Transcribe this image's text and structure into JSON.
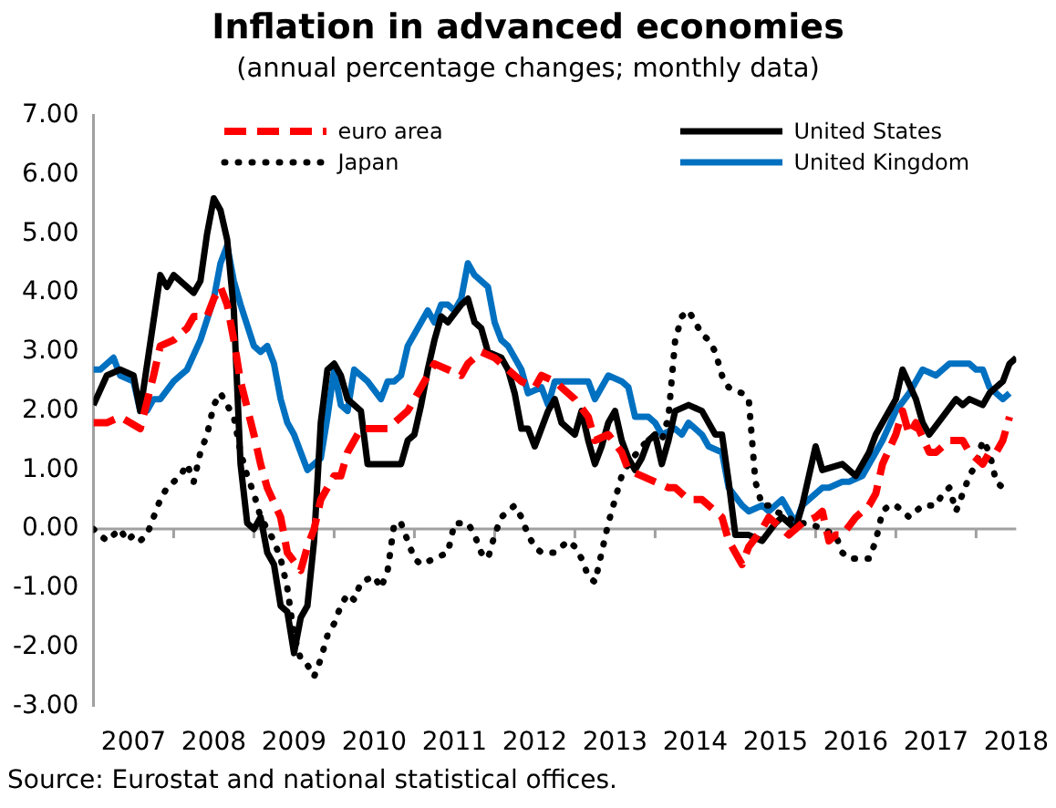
{
  "chart_data": {
    "type": "line",
    "title": "Inflation in advanced economies",
    "subtitle": "(annual percentage changes; monthly data)",
    "annotations": [
      "Source: Eurostat and national statistical offices."
    ],
    "xlim": [
      "2007-01",
      "2018-07"
    ],
    "xticks": [
      {
        "value": "2007-07",
        "label": "2007"
      },
      {
        "value": "2008-01",
        "label": null
      },
      {
        "value": "2008-07",
        "label": "2008"
      },
      {
        "value": "2009-01",
        "label": null
      },
      {
        "value": "2009-07",
        "label": "2009"
      },
      {
        "value": "2010-01",
        "label": null
      },
      {
        "value": "2010-07",
        "label": "2010"
      },
      {
        "value": "2011-01",
        "label": null
      },
      {
        "value": "2011-07",
        "label": "2011"
      },
      {
        "value": "2012-01",
        "label": null
      },
      {
        "value": "2012-07",
        "label": "2012"
      },
      {
        "value": "2013-01",
        "label": null
      },
      {
        "value": "2013-07",
        "label": "2013"
      },
      {
        "value": "2014-01",
        "label": null
      },
      {
        "value": "2014-07",
        "label": "2014"
      },
      {
        "value": "2015-01",
        "label": null
      },
      {
        "value": "2015-07",
        "label": "2015"
      },
      {
        "value": "2016-01",
        "label": null
      },
      {
        "value": "2016-07",
        "label": "2016"
      },
      {
        "value": "2017-01",
        "label": null
      },
      {
        "value": "2017-07",
        "label": "2017"
      },
      {
        "value": "2018-01",
        "label": null
      },
      {
        "value": "2018-07",
        "label": "2018"
      }
    ],
    "ylim": [
      -3,
      7
    ],
    "yticks": [
      {
        "value": -3,
        "label": "-3.00"
      },
      {
        "value": -2,
        "label": "-2.00"
      },
      {
        "value": -1,
        "label": "-1.00"
      },
      {
        "value": 0,
        "label": "0.00"
      },
      {
        "value": 1,
        "label": "1.00"
      },
      {
        "value": 2,
        "label": "2.00"
      },
      {
        "value": 3,
        "label": "3.00"
      },
      {
        "value": 4,
        "label": "4.00"
      },
      {
        "value": 5,
        "label": "5.00"
      },
      {
        "value": 6,
        "label": "6.00"
      },
      {
        "value": 7,
        "label": "7.00"
      }
    ],
    "legend": "top",
    "marker": "none",
    "series": [
      {
        "name": "euro area",
        "color": "#ff0000",
        "line_style": "dashed",
        "x": [
          "2007-01",
          "2007-03",
          "2007-05",
          "2007-08",
          "2007-10",
          "2007-11",
          "2008-01",
          "2008-03",
          "2008-04",
          "2008-06",
          "2008-07",
          "2008-08",
          "2008-09",
          "2008-10",
          "2008-11",
          "2009-01",
          "2009-02",
          "2009-03",
          "2009-05",
          "2009-06",
          "2009-08",
          "2009-09",
          "2009-10",
          "2009-11",
          "2010-01",
          "2010-02",
          "2010-03",
          "2010-05",
          "2010-07",
          "2010-09",
          "2010-11",
          "2010-12",
          "2011-02",
          "2011-04",
          "2011-06",
          "2011-08",
          "2011-09",
          "2011-11",
          "2012-01",
          "2012-03",
          "2012-05",
          "2012-07",
          "2012-08",
          "2012-10",
          "2012-11",
          "2013-01",
          "2013-03",
          "2013-04",
          "2013-06",
          "2013-08",
          "2013-09",
          "2013-11",
          "2014-01",
          "2014-03",
          "2014-04",
          "2014-06",
          "2014-08",
          "2014-10",
          "2014-11",
          "2014-12",
          "2015-02",
          "2015-03",
          "2015-05",
          "2015-06",
          "2015-07",
          "2015-09",
          "2015-11",
          "2016-01",
          "2016-02",
          "2016-03",
          "2016-04",
          "2016-05",
          "2016-07",
          "2016-09",
          "2016-10",
          "2016-11",
          "2017-01",
          "2017-02",
          "2017-03",
          "2017-04",
          "2017-06",
          "2017-07",
          "2017-09",
          "2017-11",
          "2017-12",
          "2018-02",
          "2018-03",
          "2018-04",
          "2018-05",
          "2018-06"
        ],
        "values": [
          1.8,
          1.8,
          1.9,
          1.7,
          2.6,
          3.1,
          3.2,
          3.4,
          3.6,
          3.6,
          3.9,
          4.1,
          3.8,
          3.2,
          2.5,
          1.6,
          1.1,
          0.7,
          0.2,
          -0.4,
          -0.7,
          -0.3,
          0.0,
          0.5,
          0.9,
          0.9,
          1.3,
          1.7,
          1.7,
          1.7,
          1.9,
          2.0,
          2.4,
          2.8,
          2.7,
          2.6,
          2.8,
          3.0,
          2.9,
          2.7,
          2.5,
          2.4,
          2.6,
          2.5,
          2.4,
          2.2,
          1.9,
          1.5,
          1.6,
          1.3,
          1.0,
          0.9,
          0.8,
          0.7,
          0.7,
          0.5,
          0.5,
          0.3,
          0.2,
          -0.2,
          -0.6,
          -0.3,
          0.0,
          0.2,
          0.1,
          -0.1,
          0.1,
          0.2,
          0.3,
          -0.2,
          -0.1,
          -0.1,
          0.2,
          0.4,
          0.6,
          1.1,
          1.6,
          2.0,
          1.6,
          1.8,
          1.3,
          1.3,
          1.5,
          1.5,
          1.3,
          1.1,
          1.3,
          1.3,
          1.5,
          1.9
        ]
      },
      {
        "name": "United States",
        "color": "#000000",
        "line_style": "solid",
        "x": [
          "2007-01",
          "2007-03",
          "2007-05",
          "2007-07",
          "2007-08",
          "2007-11",
          "2007-12",
          "2008-01",
          "2008-04",
          "2008-05",
          "2008-06",
          "2008-07",
          "2008-08",
          "2008-09",
          "2008-10",
          "2008-11",
          "2008-12",
          "2009-01",
          "2009-02",
          "2009-03",
          "2009-04",
          "2009-05",
          "2009-06",
          "2009-07",
          "2009-08",
          "2009-09",
          "2009-10",
          "2009-11",
          "2009-12",
          "2010-01",
          "2010-02",
          "2010-03",
          "2010-05",
          "2010-06",
          "2010-09",
          "2010-11",
          "2010-12",
          "2011-01",
          "2011-02",
          "2011-03",
          "2011-04",
          "2011-05",
          "2011-06",
          "2011-08",
          "2011-09",
          "2011-10",
          "2011-11",
          "2011-12",
          "2012-02",
          "2012-03",
          "2012-04",
          "2012-05",
          "2012-06",
          "2012-07",
          "2012-08",
          "2012-09",
          "2012-10",
          "2012-11",
          "2012-12",
          "2013-01",
          "2013-02",
          "2013-03",
          "2013-04",
          "2013-05",
          "2013-06",
          "2013-07",
          "2013-08",
          "2013-09",
          "2013-10",
          "2013-11",
          "2013-12",
          "2014-01",
          "2014-02",
          "2014-03",
          "2014-04",
          "2014-06",
          "2014-08",
          "2014-10",
          "2014-11",
          "2014-12",
          "2015-01",
          "2015-03",
          "2015-05",
          "2015-07",
          "2015-08",
          "2015-10",
          "2015-11",
          "2016-01",
          "2016-02",
          "2016-05",
          "2016-07",
          "2016-09",
          "2016-10",
          "2016-11",
          "2017-01",
          "2017-02",
          "2017-04",
          "2017-05",
          "2017-06",
          "2017-08",
          "2017-10",
          "2017-11",
          "2017-12",
          "2018-02",
          "2018-03",
          "2018-05",
          "2018-06",
          "2018-07"
        ],
        "values": [
          2.1,
          2.6,
          2.7,
          2.6,
          2.0,
          4.3,
          4.1,
          4.3,
          4.0,
          4.2,
          5.0,
          5.6,
          5.4,
          4.9,
          3.7,
          1.1,
          0.1,
          0.0,
          0.2,
          -0.4,
          -0.6,
          -1.3,
          -1.4,
          -2.1,
          -1.5,
          -1.3,
          -0.2,
          1.8,
          2.7,
          2.8,
          2.6,
          2.2,
          2.0,
          1.1,
          1.1,
          1.1,
          1.5,
          1.6,
          2.1,
          2.7,
          3.2,
          3.6,
          3.5,
          3.8,
          3.9,
          3.5,
          3.4,
          3.0,
          2.9,
          2.7,
          2.3,
          1.7,
          1.7,
          1.4,
          1.7,
          2.0,
          2.2,
          1.8,
          1.7,
          1.6,
          2.0,
          1.5,
          1.1,
          1.4,
          1.8,
          2.0,
          1.5,
          1.2,
          1.0,
          1.2,
          1.5,
          1.6,
          1.1,
          1.5,
          2.0,
          2.1,
          2.0,
          1.6,
          1.6,
          0.8,
          -0.1,
          -0.1,
          -0.2,
          0.1,
          0.2,
          0.0,
          0.4,
          1.4,
          1.0,
          1.1,
          0.9,
          1.3,
          1.6,
          1.8,
          2.2,
          2.7,
          2.2,
          1.8,
          1.6,
          1.9,
          2.2,
          2.1,
          2.2,
          2.1,
          2.3,
          2.5,
          2.8,
          2.9
        ]
      },
      {
        "name": "Japan",
        "color": "#000000",
        "line_style": "dotted",
        "x": [
          "2007-01",
          "2007-03",
          "2007-05",
          "2007-06",
          "2007-07",
          "2007-08",
          "2007-09",
          "2007-10",
          "2007-11",
          "2007-12",
          "2008-02",
          "2008-03",
          "2008-04",
          "2008-05",
          "2008-06",
          "2008-07",
          "2008-08",
          "2008-09",
          "2008-10",
          "2008-11",
          "2008-12",
          "2009-01",
          "2009-02",
          "2009-03",
          "2009-04",
          "2009-05",
          "2009-06",
          "2009-07",
          "2009-08",
          "2009-09",
          "2009-10",
          "2009-11",
          "2009-12",
          "2010-01",
          "2010-02",
          "2010-03",
          "2010-04",
          "2010-05",
          "2010-07",
          "2010-08",
          "2010-09",
          "2010-10",
          "2010-11",
          "2011-01",
          "2011-02",
          "2011-04",
          "2011-06",
          "2011-07",
          "2011-09",
          "2011-10",
          "2011-11",
          "2011-12",
          "2012-01",
          "2012-02",
          "2012-03",
          "2012-04",
          "2012-05",
          "2012-06",
          "2012-07",
          "2012-08",
          "2012-10",
          "2012-12",
          "2013-01",
          "2013-02",
          "2013-03",
          "2013-04",
          "2013-05",
          "2013-06",
          "2013-07",
          "2013-08",
          "2013-09",
          "2013-11",
          "2013-12",
          "2014-01",
          "2014-02",
          "2014-03",
          "2014-04",
          "2014-05",
          "2014-06",
          "2014-07",
          "2014-08",
          "2014-09",
          "2014-10",
          "2014-11",
          "2014-12",
          "2015-02",
          "2015-03",
          "2015-04",
          "2015-05",
          "2015-06",
          "2015-07",
          "2015-09",
          "2015-10",
          "2015-12",
          "2016-02",
          "2016-04",
          "2016-05",
          "2016-06",
          "2016-08",
          "2016-09",
          "2016-10",
          "2016-11",
          "2016-12",
          "2017-01",
          "2017-03",
          "2017-05",
          "2017-07",
          "2017-08",
          "2017-09",
          "2017-10",
          "2017-11",
          "2017-12",
          "2018-01",
          "2018-02",
          "2018-03",
          "2018-04",
          "2018-05"
        ],
        "values": [
          0.0,
          -0.2,
          0.0,
          -0.2,
          -0.1,
          -0.2,
          -0.1,
          0.2,
          0.5,
          0.7,
          0.9,
          1.1,
          0.8,
          1.3,
          1.6,
          2.1,
          2.3,
          2.1,
          1.9,
          1.3,
          0.9,
          0.6,
          0.2,
          0.0,
          -0.2,
          -0.5,
          -1.0,
          -1.8,
          -2.2,
          -2.3,
          -2.5,
          -2.2,
          -1.8,
          -1.6,
          -1.3,
          -1.1,
          -1.2,
          -0.9,
          -0.8,
          -1.0,
          -0.7,
          0.1,
          0.1,
          -0.5,
          -0.6,
          -0.5,
          -0.4,
          0.1,
          0.1,
          -0.1,
          -0.4,
          -0.5,
          -0.1,
          0.2,
          0.3,
          0.4,
          0.2,
          -0.1,
          -0.3,
          -0.4,
          -0.4,
          -0.2,
          -0.3,
          -0.5,
          -0.8,
          -0.9,
          -0.4,
          0.1,
          0.5,
          0.9,
          1.1,
          1.4,
          1.5,
          1.6,
          1.5,
          1.9,
          3.2,
          3.6,
          3.7,
          3.5,
          3.3,
          3.2,
          3.0,
          2.6,
          2.4,
          2.3,
          2.2,
          0.8,
          0.4,
          0.4,
          0.3,
          0.2,
          0.1,
          0.1,
          0.0,
          -0.1,
          -0.4,
          -0.5,
          -0.5,
          -0.5,
          -0.2,
          0.3,
          0.4,
          0.4,
          0.2,
          0.4,
          0.4,
          0.6,
          0.7,
          0.3,
          0.6,
          0.9,
          1.1,
          1.5,
          1.3,
          0.8,
          0.7
        ]
      },
      {
        "name": "United Kingdom",
        "color": "#0070c0",
        "line_style": "solid",
        "x": [
          "2007-01",
          "2007-02",
          "2007-04",
          "2007-05",
          "2007-07",
          "2007-08",
          "2007-09",
          "2007-10",
          "2007-11",
          "2008-01",
          "2008-02",
          "2008-03",
          "2008-05",
          "2008-07",
          "2008-08",
          "2008-09",
          "2008-10",
          "2008-11",
          "2009-01",
          "2009-02",
          "2009-03",
          "2009-04",
          "2009-05",
          "2009-06",
          "2009-07",
          "2009-08",
          "2009-09",
          "2009-11",
          "2009-12",
          "2010-01",
          "2010-02",
          "2010-03",
          "2010-04",
          "2010-06",
          "2010-08",
          "2010-09",
          "2010-10",
          "2010-11",
          "2010-12",
          "2011-02",
          "2011-03",
          "2011-04",
          "2011-05",
          "2011-06",
          "2011-07",
          "2011-08",
          "2011-09",
          "2011-10",
          "2011-12",
          "2012-01",
          "2012-02",
          "2012-03",
          "2012-05",
          "2012-06",
          "2012-08",
          "2012-09",
          "2012-10",
          "2013-01",
          "2013-03",
          "2013-04",
          "2013-06",
          "2013-08",
          "2013-09",
          "2013-10",
          "2013-12",
          "2014-01",
          "2014-02",
          "2014-04",
          "2014-05",
          "2014-06",
          "2014-08",
          "2014-09",
          "2014-11",
          "2014-12",
          "2015-02",
          "2015-03",
          "2015-05",
          "2015-06",
          "2015-08",
          "2015-10",
          "2015-11",
          "2016-02",
          "2016-03",
          "2016-05",
          "2016-06",
          "2016-08",
          "2016-10",
          "2016-11",
          "2017-01",
          "2017-03",
          "2017-05",
          "2017-07",
          "2017-09",
          "2017-10",
          "2017-12",
          "2018-01",
          "2018-02",
          "2018-03",
          "2018-05",
          "2018-06"
        ],
        "values": [
          2.7,
          2.7,
          2.9,
          2.6,
          2.5,
          2.0,
          2.0,
          2.2,
          2.2,
          2.5,
          2.6,
          2.7,
          3.2,
          3.9,
          4.5,
          4.8,
          4.2,
          3.8,
          3.1,
          3.0,
          3.1,
          2.8,
          2.2,
          1.8,
          1.6,
          1.3,
          1.0,
          1.2,
          1.9,
          2.7,
          2.1,
          2.0,
          2.7,
          2.5,
          2.2,
          2.5,
          2.5,
          2.6,
          3.1,
          3.5,
          3.7,
          3.5,
          3.8,
          3.8,
          3.7,
          3.9,
          4.5,
          4.3,
          4.1,
          3.5,
          3.2,
          3.1,
          2.7,
          2.3,
          2.4,
          2.1,
          2.5,
          2.5,
          2.5,
          2.2,
          2.6,
          2.5,
          2.4,
          1.9,
          1.9,
          1.8,
          1.6,
          1.7,
          1.6,
          1.8,
          1.6,
          1.4,
          1.3,
          0.7,
          0.4,
          0.3,
          0.4,
          0.3,
          0.5,
          0.1,
          0.4,
          0.7,
          0.7,
          0.8,
          0.8,
          0.9,
          1.3,
          1.5,
          2.0,
          2.3,
          2.7,
          2.6,
          2.8,
          2.8,
          2.8,
          2.7,
          2.7,
          2.4,
          2.2,
          2.3
        ]
      }
    ]
  }
}
